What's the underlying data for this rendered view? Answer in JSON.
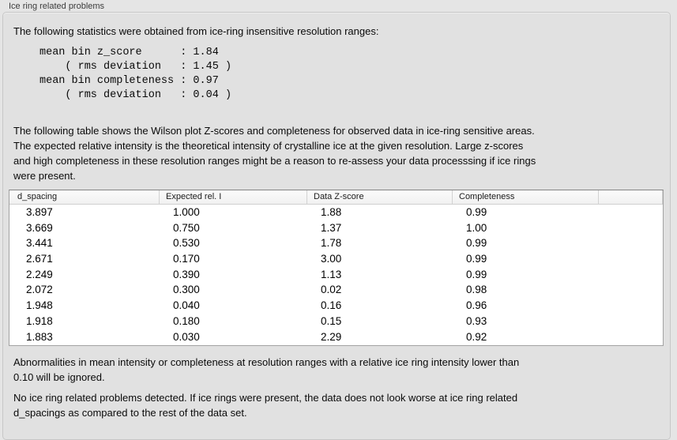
{
  "panel": {
    "title": "Ice ring related problems"
  },
  "content": {
    "intro": "The following statistics were obtained from ice-ring insensitive resolution ranges:",
    "stats_block": "mean bin z_score      : 1.84\n    ( rms deviation   : 1.45 )\nmean bin completeness : 0.97\n    ( rms deviation   : 0.04 )",
    "stats": {
      "mean_bin_z_score": "1.84",
      "z_score_rms_deviation": "1.45",
      "mean_bin_completeness": "0.97",
      "completeness_rms_deviation": "0.04"
    },
    "description": "The following table shows the Wilson plot Z-scores and completeness for observed data in ice-ring sensitive areas.\nThe expected relative intensity is the theoretical intensity of crystalline ice at the given resolution. Large z-scores\nand high completeness in these resolution ranges might be a reason to re-assess your data processsing if ice rings\nwere present.",
    "footnote": "Abnormalities in mean intensity or completeness at resolution ranges with a relative ice ring intensity lower than\n0.10 will be ignored.",
    "conclusion": "No ice ring related problems detected. If ice rings were present, the data does not look worse at ice ring related\nd_spacings as compared to the rest of the data set."
  },
  "table": {
    "columns": [
      "d_spacing",
      "Expected rel. I",
      "Data Z-score",
      "Completeness",
      ""
    ],
    "rows": [
      [
        "3.897",
        "1.000",
        "1.88",
        "0.99"
      ],
      [
        "3.669",
        "0.750",
        "1.37",
        "1.00"
      ],
      [
        "3.441",
        "0.530",
        "1.78",
        "0.99"
      ],
      [
        "2.671",
        "0.170",
        "3.00",
        "0.99"
      ],
      [
        "2.249",
        "0.390",
        "1.13",
        "0.99"
      ],
      [
        "2.072",
        "0.300",
        "0.02",
        "0.98"
      ],
      [
        "1.948",
        "0.040",
        "0.16",
        "0.96"
      ],
      [
        "1.918",
        "0.180",
        "0.15",
        "0.93"
      ],
      [
        "1.883",
        "0.030",
        "2.29",
        "0.92"
      ]
    ]
  },
  "colors": {
    "page_bg": "#e5e5e5",
    "box_bg": "#e1e1e1",
    "box_border": "#c7c7c7",
    "table_bg": "#ffffff",
    "table_border": "#a2a2a2",
    "header_bg": "#f6f6f6",
    "header_separator": "#d2d2d2",
    "text": "#0a0a0a"
  }
}
